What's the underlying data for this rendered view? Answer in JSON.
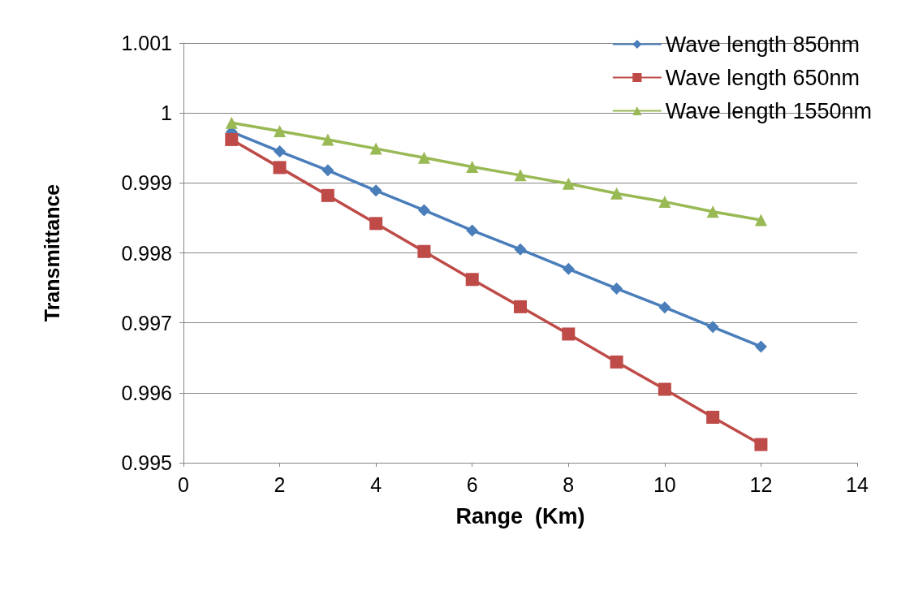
{
  "chart_data": {
    "type": "line",
    "xlabel": "Range  (Km)",
    "ylabel": "Transmittance",
    "x": [
      1,
      2,
      3,
      4,
      5,
      6,
      7,
      8,
      9,
      10,
      11,
      12
    ],
    "series": [
      {
        "name": "Wave length 850nm",
        "color": "#4a7ebb",
        "marker": "diamond",
        "values": [
          0.99973,
          0.99945,
          0.99918,
          0.99889,
          0.99861,
          0.99832,
          0.99805,
          0.99777,
          0.99749,
          0.99722,
          0.99694,
          0.99666
        ]
      },
      {
        "name": "Wave length 650nm",
        "color": "#be4b48",
        "marker": "square",
        "values": [
          0.99962,
          0.99922,
          0.99882,
          0.99842,
          0.99802,
          0.99762,
          0.99723,
          0.99684,
          0.99644,
          0.99605,
          0.99565,
          0.99526
        ]
      },
      {
        "name": "Wave length 1550nm",
        "color": "#98b954",
        "marker": "triangle",
        "values": [
          0.99986,
          0.99974,
          0.99962,
          0.99949,
          0.99936,
          0.99923,
          0.99911,
          0.99899,
          0.99885,
          0.99873,
          0.99859,
          0.99847
        ]
      }
    ],
    "xlim": [
      0,
      14
    ],
    "xticks": [
      0,
      2,
      4,
      6,
      8,
      10,
      12,
      14
    ],
    "ylim": [
      0.995,
      1.001
    ],
    "yticks": [
      0.995,
      0.996,
      0.997,
      0.998,
      0.999,
      1,
      1.001
    ],
    "grid": "y",
    "legend": "top right",
    "line_style": "solid"
  }
}
